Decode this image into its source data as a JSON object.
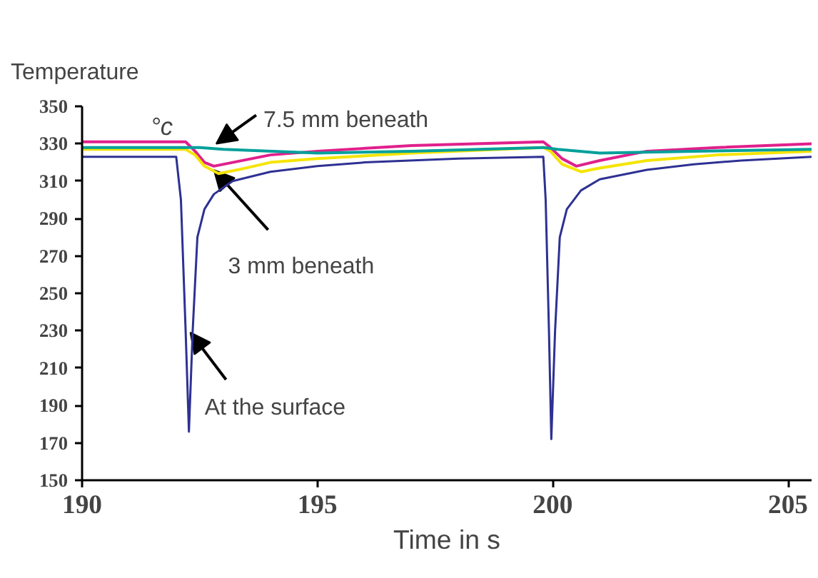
{
  "chart_data": {
    "type": "line",
    "title": "Temperature",
    "xlabel": "Time in s",
    "xlim": [
      190,
      205.5
    ],
    "xticks": [
      190,
      195,
      200,
      205
    ],
    "ylim": [
      150,
      350
    ],
    "yticks": [
      150,
      170,
      190,
      210,
      230,
      250,
      270,
      290,
      310,
      330,
      350
    ],
    "grid": false,
    "marker": "none",
    "line_style": "solid",
    "annotations": [
      "°c",
      {
        "text": "7.5 mm beneath",
        "x": 192.85,
        "y": 330
      },
      {
        "text": "3 mm beneath",
        "x": 192.8,
        "y": 316
      },
      {
        "text": "At the surface",
        "x": 192.3,
        "y": 229
      }
    ],
    "series": [
      {
        "color": "#e0208c",
        "x": [
          190,
          192.2,
          192.4,
          192.6,
          192.8,
          193.2,
          194,
          195,
          197,
          199.8,
          199.95,
          200.2,
          200.5,
          201,
          202,
          203.5,
          205.5
        ],
        "values": [
          331,
          331,
          326,
          320,
          318,
          320,
          324,
          326,
          329,
          331,
          328,
          322,
          318,
          321,
          326,
          328,
          330
        ]
      },
      {
        "color": "#f5e400",
        "x": [
          190,
          192.2,
          192.4,
          192.6,
          192.9,
          193.3,
          194,
          195,
          197,
          199.8,
          199.95,
          200.2,
          200.6,
          201,
          202,
          203.5,
          205.5
        ],
        "values": [
          327,
          327,
          324,
          318,
          314,
          316,
          320,
          322,
          325,
          328,
          326,
          319,
          315,
          317,
          321,
          324,
          326
        ]
      },
      {
        "color": "#00a09a",
        "x": [
          190,
          192.2,
          192.5,
          193,
          195,
          197,
          199.8,
          200.1,
          201,
          203,
          205.5
        ],
        "values": [
          328,
          328,
          328,
          327,
          325,
          326,
          328,
          327,
          325,
          326,
          327
        ]
      },
      {
        "color": "#2e3192",
        "x": [
          190,
          192.0,
          192.1,
          192.2,
          192.27,
          192.35,
          192.45,
          192.6,
          192.8,
          193.2,
          194,
          195,
          196,
          198,
          199.8,
          199.85,
          199.92,
          199.97,
          200.05,
          200.15,
          200.3,
          200.6,
          201,
          202,
          203,
          204,
          205.5
        ],
        "values": [
          323,
          323,
          300,
          230,
          176,
          230,
          280,
          295,
          303,
          310,
          315,
          318,
          320,
          322,
          323,
          300,
          230,
          172,
          230,
          280,
          295,
          305,
          311,
          316,
          319,
          321,
          323
        ]
      }
    ]
  }
}
